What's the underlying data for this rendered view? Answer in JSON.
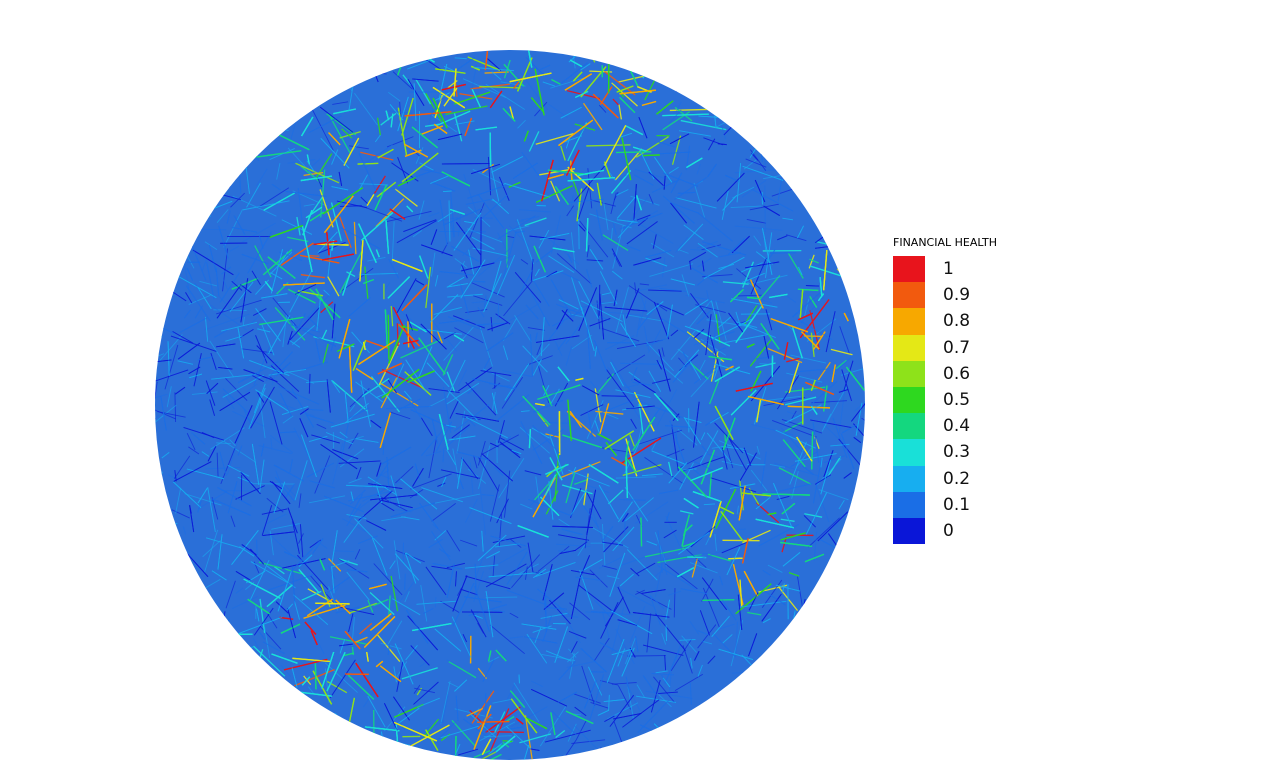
{
  "legend": {
    "title": "FINANCIAL HEALTH",
    "entries": [
      {
        "label": "1",
        "color": "#e8141c"
      },
      {
        "label": "0.9",
        "color": "#f25a0e"
      },
      {
        "label": "0.8",
        "color": "#f7a800"
      },
      {
        "label": "0.7",
        "color": "#e4e816"
      },
      {
        "label": "0.6",
        "color": "#8ee21a"
      },
      {
        "label": "0.5",
        "color": "#2ed81f"
      },
      {
        "label": "0.4",
        "color": "#14d77f"
      },
      {
        "label": "0.3",
        "color": "#19e0d8"
      },
      {
        "label": "0.2",
        "color": "#17aef0"
      },
      {
        "label": "0.1",
        "color": "#1a6ee6"
      },
      {
        "label": "0",
        "color": "#0a16d8"
      }
    ]
  }
}
